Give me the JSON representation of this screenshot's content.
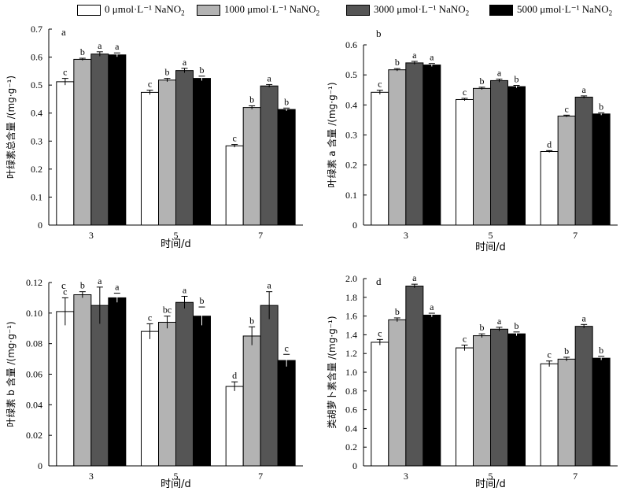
{
  "legend": [
    {
      "label": "0 μmol·L⁻¹ NaNO",
      "sub": "2",
      "color": "#ffffff"
    },
    {
      "label": "1000 μmol·L⁻¹ NaNO",
      "sub": "2",
      "color": "#b3b3b3"
    },
    {
      "label": "3000 μmol·L⁻¹ NaNO",
      "sub": "2",
      "color": "#555555"
    },
    {
      "label": "5000 μmol·L⁻¹ NaNO",
      "sub": "2",
      "color": "#000000"
    }
  ],
  "chart_data": [
    {
      "type": "bar",
      "panel_label": "a",
      "ylabel": "叶绿素总含量 /(mg·g⁻¹)",
      "xlabel": "时间/d",
      "categories": [
        "3",
        "5",
        "7"
      ],
      "ylim": [
        0,
        0.7
      ],
      "yticks": [
        "0",
        "0.1",
        "0.2",
        "0.3",
        "0.4",
        "0.5",
        "0.6",
        "0.7"
      ],
      "series": [
        {
          "name": "0 μmol·L⁻¹ NaNO2",
          "values": [
            0.512,
            0.474,
            0.283
          ],
          "errors": [
            0.012,
            0.008,
            0.005
          ],
          "letters": [
            "c",
            "c",
            "c"
          ]
        },
        {
          "name": "1000 μmol·L⁻¹ NaNO2",
          "values": [
            0.592,
            0.518,
            0.42
          ],
          "errors": [
            0.004,
            0.006,
            0.006
          ],
          "letters": [
            "b",
            "b",
            "b"
          ]
        },
        {
          "name": "3000 μmol·L⁻¹ NaNO2",
          "values": [
            0.611,
            0.552,
            0.497
          ],
          "errors": [
            0.008,
            0.008,
            0.005
          ],
          "letters": [
            "a",
            "a",
            "a"
          ]
        },
        {
          "name": "5000 μmol·L⁻¹ NaNO2",
          "values": [
            0.608,
            0.524,
            0.413
          ],
          "errors": [
            0.007,
            0.008,
            0.005
          ],
          "letters": [
            "a",
            "b",
            "b"
          ]
        }
      ]
    },
    {
      "type": "bar",
      "panel_label": "b",
      "ylabel": "叶绿素 a 含量 /(mg·g⁻¹)",
      "xlabel": "时间/d",
      "categories": [
        "3",
        "5",
        "7"
      ],
      "ylim": [
        0,
        0.6
      ],
      "yticks": [
        "0",
        "0.1",
        "0.2",
        "0.3",
        "0.4",
        "0.5",
        "0.6"
      ],
      "series": [
        {
          "name": "0 μmol·L⁻¹ NaNO2",
          "values": [
            0.442,
            0.418,
            0.245
          ],
          "errors": [
            0.007,
            0.004,
            0.003
          ],
          "letters": [
            "c",
            "c",
            "d"
          ]
        },
        {
          "name": "1000 μmol·L⁻¹ NaNO2",
          "values": [
            0.517,
            0.455,
            0.363
          ],
          "errors": [
            0.004,
            0.004,
            0.003
          ],
          "letters": [
            "b",
            "b",
            "c"
          ]
        },
        {
          "name": "3000 μmol·L⁻¹ NaNO2",
          "values": [
            0.54,
            0.481,
            0.426
          ],
          "errors": [
            0.005,
            0.005,
            0.004
          ],
          "letters": [
            "a",
            "a",
            "a"
          ]
        },
        {
          "name": "5000 μmol·L⁻¹ NaNO2",
          "values": [
            0.533,
            0.461,
            0.37
          ],
          "errors": [
            0.005,
            0.004,
            0.004
          ],
          "letters": [
            "a",
            "b",
            "b"
          ]
        }
      ]
    },
    {
      "type": "bar",
      "panel_label": "c",
      "ylabel": "叶绿素 b 含量 /(mg·g⁻¹)",
      "xlabel": "时间/d",
      "categories": [
        "3",
        "5",
        "7"
      ],
      "ylim": [
        0,
        0.12
      ],
      "yticks": [
        "0",
        "0.02",
        "0.04",
        "0.06",
        "0.08",
        "0.10",
        "0.12"
      ],
      "series": [
        {
          "name": "0 μmol·L⁻¹ NaNO2",
          "values": [
            0.101,
            0.088,
            0.052
          ],
          "errors": [
            0.009,
            0.005,
            0.003
          ],
          "letters": [
            "c",
            "c",
            "d"
          ]
        },
        {
          "name": "1000 μmol·L⁻¹ NaNO2",
          "values": [
            0.112,
            0.094,
            0.085
          ],
          "errors": [
            0.002,
            0.004,
            0.006
          ],
          "letters": [
            "b",
            "bc",
            "b"
          ]
        },
        {
          "name": "3000 μmol·L⁻¹ NaNO2",
          "values": [
            0.105,
            0.107,
            0.105
          ],
          "errors": [
            0.012,
            0.004,
            0.009
          ],
          "letters": [
            "a",
            "a",
            "a"
          ]
        },
        {
          "name": "5000 μmol·L⁻¹ NaNO2",
          "values": [
            0.11,
            0.098,
            0.069
          ],
          "errors": [
            0.003,
            0.006,
            0.004
          ],
          "letters": [
            "a",
            "b",
            "c"
          ]
        }
      ]
    },
    {
      "type": "bar",
      "panel_label": "d",
      "ylabel": "类胡萝卜素含量 /(mg·g⁻¹)",
      "xlabel": "时间/d",
      "categories": [
        "3",
        "5",
        "7"
      ],
      "ylim": [
        0,
        2.0
      ],
      "yticks": [
        "0",
        "0.2",
        "0.4",
        "0.6",
        "0.8",
        "1.0",
        "1.2",
        "1.4",
        "1.6",
        "1.8",
        "2.0"
      ],
      "series": [
        {
          "name": "0 μmol·L⁻¹ NaNO2",
          "values": [
            1.32,
            1.26,
            1.09
          ],
          "errors": [
            0.03,
            0.03,
            0.03
          ],
          "letters": [
            "c",
            "c",
            "c"
          ]
        },
        {
          "name": "1000 μmol·L⁻¹ NaNO2",
          "values": [
            1.56,
            1.39,
            1.14
          ],
          "errors": [
            0.02,
            0.02,
            0.02
          ],
          "letters": [
            "b",
            "b",
            "b"
          ]
        },
        {
          "name": "3000 μmol·L⁻¹ NaNO2",
          "values": [
            1.92,
            1.46,
            1.49
          ],
          "errors": [
            0.02,
            0.02,
            0.02
          ],
          "letters": [
            "a",
            "a",
            "a"
          ]
        },
        {
          "name": "5000 μmol·L⁻¹ NaNO2",
          "values": [
            1.61,
            1.41,
            1.15
          ],
          "errors": [
            0.02,
            0.02,
            0.02
          ],
          "letters": [
            "a",
            "b",
            "b"
          ]
        }
      ]
    }
  ]
}
